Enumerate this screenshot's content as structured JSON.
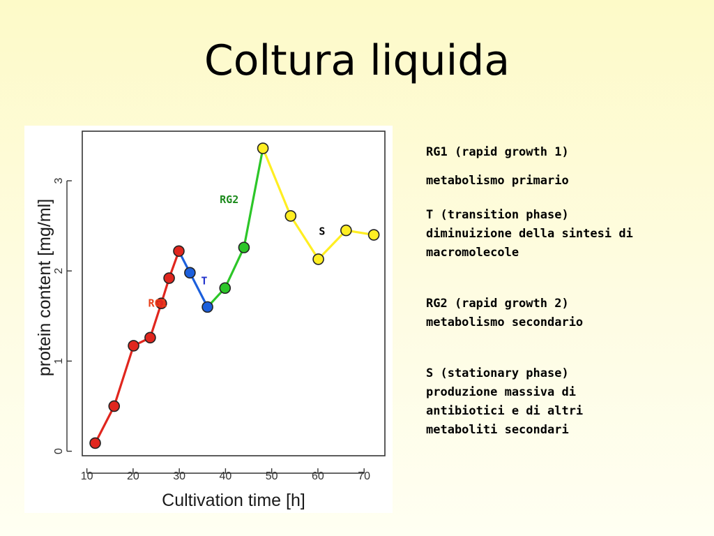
{
  "slide": {
    "title": "Coltura liquida"
  },
  "chart_data": {
    "type": "line",
    "xlabel": "Cultivation time [h]",
    "ylabel": "protein content [mg/ml]",
    "xlim": [
      9,
      74.5
    ],
    "ylim": [
      -0.05,
      3.55
    ],
    "x_ticks": [
      "10",
      "20",
      "30",
      "40",
      "50",
      "60",
      "70"
    ],
    "x_tick_values": [
      10,
      20,
      30,
      40,
      50,
      60,
      70
    ],
    "y_ticks": [
      "0",
      "1",
      "2",
      "3"
    ],
    "y_tick_values": [
      0,
      1,
      2,
      3
    ],
    "grid": false,
    "points": [
      {
        "x": 11.8,
        "y": 0.09,
        "phase": "RG1"
      },
      {
        "x": 15.9,
        "y": 0.5,
        "phase": "RG1"
      },
      {
        "x": 20.1,
        "y": 1.17,
        "phase": "RG1"
      },
      {
        "x": 23.7,
        "y": 1.26,
        "phase": "RG1"
      },
      {
        "x": 26.1,
        "y": 1.64,
        "phase": "RG1"
      },
      {
        "x": 27.8,
        "y": 1.92,
        "phase": "RG1"
      },
      {
        "x": 29.9,
        "y": 2.22,
        "phase": "RG1"
      },
      {
        "x": 32.3,
        "y": 1.98,
        "phase": "T"
      },
      {
        "x": 36.1,
        "y": 1.6,
        "phase": "T"
      },
      {
        "x": 39.9,
        "y": 1.81,
        "phase": "RG2"
      },
      {
        "x": 44.0,
        "y": 2.26,
        "phase": "RG2"
      },
      {
        "x": 48.1,
        "y": 3.36,
        "phase": "S"
      },
      {
        "x": 54.1,
        "y": 2.61,
        "phase": "S"
      },
      {
        "x": 60.1,
        "y": 2.13,
        "phase": "S"
      },
      {
        "x": 66.1,
        "y": 2.45,
        "phase": "S"
      },
      {
        "x": 72.1,
        "y": 2.4,
        "phase": "S"
      }
    ],
    "series": [
      {
        "name": "RG1",
        "color": "#e0261e",
        "line_color": "#e0261e",
        "point_indices": [
          0,
          1,
          2,
          3,
          4,
          5,
          6
        ]
      },
      {
        "name": "T",
        "color": "#1c5fdc",
        "line_color": "#1c5fdc",
        "point_indices": [
          6,
          7,
          8
        ]
      },
      {
        "name": "RG2",
        "color": "#2cc628",
        "line_color": "#2cc628",
        "point_indices": [
          8,
          9,
          10,
          11
        ]
      },
      {
        "name": "S",
        "color": "#ffee22",
        "line_color": "#ffee22",
        "point_indices": [
          11,
          12,
          13,
          14,
          15
        ]
      }
    ],
    "annotations": [
      {
        "text": "RG1",
        "x": 25.3,
        "y": 1.64,
        "color": "#e8401a"
      },
      {
        "text": "T",
        "x": 35.4,
        "y": 1.89,
        "color": "#2233cc"
      },
      {
        "text": "RG2",
        "x": 40.8,
        "y": 2.79,
        "color": "#1c8a1c"
      },
      {
        "text": "S",
        "x": 60.9,
        "y": 2.44,
        "color": "#000000"
      }
    ]
  },
  "notes": {
    "rg1_title": "RG1 (rapid growth 1)",
    "rg1_desc": "metabolismo primario",
    "t_title": "T (transition phase)",
    "t_desc_1": "diminuizione della sintesi di",
    "t_desc_2": "macromolecole",
    "rg2_title": "RG2 (rapid growth 2)",
    "rg2_desc": "metabolismo secondario",
    "s_title": "S (stationary phase)",
    "s_desc_1": "produzione massiva di",
    "s_desc_2": "antibiotici e di altri",
    "s_desc_3": "metaboliti secondari"
  }
}
